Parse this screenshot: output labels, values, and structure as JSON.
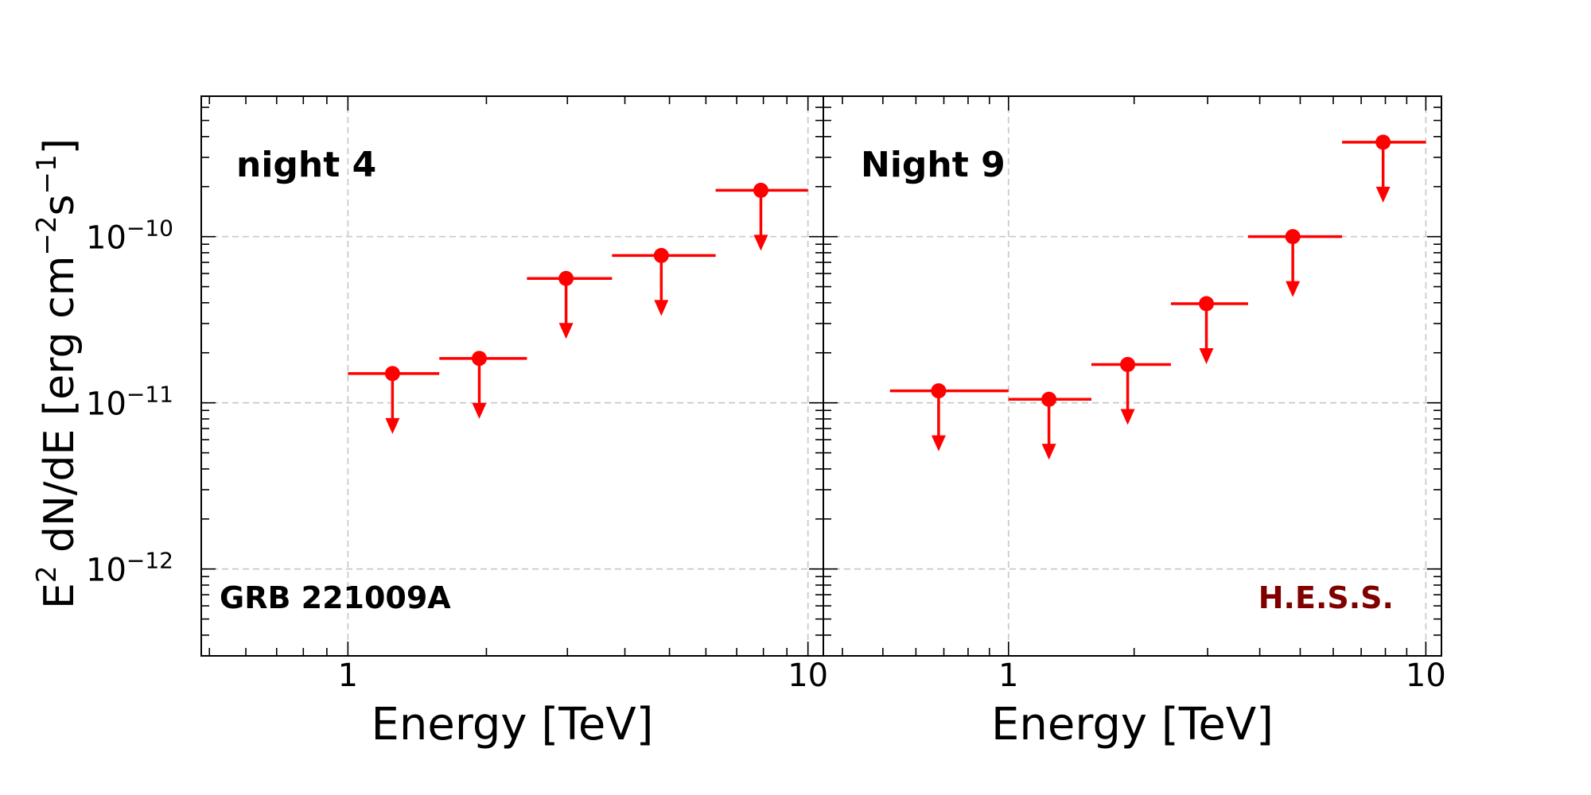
{
  "figure": {
    "ylabel": "E$^2$ dN/dE [erg cm$^{-2}$s$^{-1}$]",
    "ylabel_parts": {
      "pre": "E",
      "exp1": "2",
      "mid": " dN/dE [erg cm",
      "exp2": "−2",
      "s": "s",
      "exp3": "−1",
      "post": "]"
    },
    "ytick_labels": [
      {
        "base": "10",
        "exp": "−10",
        "value": 1e-10
      },
      {
        "base": "10",
        "exp": "−11",
        "value": 1e-11
      },
      {
        "base": "10",
        "exp": "−12",
        "value": 1e-12
      }
    ],
    "marker_color": "#ff0000",
    "hess_color": "#800000",
    "grid_color": "#cccccc"
  },
  "chart_data": [
    {
      "type": "scatter",
      "subtype": "upper-limits",
      "panel_label": "night 4",
      "corner_label": "GRB 221009A",
      "xlabel": "Energy [TeV]",
      "xscale": "log",
      "yscale": "log",
      "xlim": [
        0.48,
        10.8
      ],
      "ylim": [
        3e-13,
        7e-10
      ],
      "xtick_labels": [
        "1",
        "10"
      ],
      "xtick_values": [
        1,
        10
      ],
      "grid": true,
      "series": [
        {
          "upper_limits": true,
          "points": [
            {
              "x": 1.25,
              "x_lo": 1.0,
              "x_hi": 1.58,
              "y": 1.5e-11
            },
            {
              "x": 1.93,
              "x_lo": 1.58,
              "x_hi": 2.45,
              "y": 1.85e-11
            },
            {
              "x": 2.98,
              "x_lo": 2.45,
              "x_hi": 3.75,
              "y": 5.6e-11
            },
            {
              "x": 4.8,
              "x_lo": 3.75,
              "x_hi": 6.3,
              "y": 7.7e-11
            },
            {
              "x": 7.9,
              "x_lo": 6.3,
              "x_hi": 10.0,
              "y": 1.9e-10
            }
          ]
        }
      ]
    },
    {
      "type": "scatter",
      "subtype": "upper-limits",
      "panel_label": "Night 9",
      "corner_label": "H.E.S.S.",
      "xlabel": "Energy [TeV]",
      "xscale": "log",
      "yscale": "log",
      "xlim": [
        0.36,
        10.9
      ],
      "ylim": [
        3e-13,
        7e-10
      ],
      "xtick_labels": [
        "1",
        "10"
      ],
      "xtick_values": [
        1,
        10
      ],
      "grid": true,
      "series": [
        {
          "upper_limits": true,
          "points": [
            {
              "x": 0.68,
              "x_lo": 0.52,
              "x_hi": 1.0,
              "y": 1.18e-11
            },
            {
              "x": 1.25,
              "x_lo": 1.0,
              "x_hi": 1.58,
              "y": 1.05e-11
            },
            {
              "x": 1.93,
              "x_lo": 1.58,
              "x_hi": 2.45,
              "y": 1.7e-11
            },
            {
              "x": 2.98,
              "x_lo": 2.45,
              "x_hi": 3.75,
              "y": 3.95e-11
            },
            {
              "x": 4.8,
              "x_lo": 3.75,
              "x_hi": 6.3,
              "y": 1e-10
            },
            {
              "x": 7.9,
              "x_lo": 6.3,
              "x_hi": 10.0,
              "y": 3.7e-10
            }
          ]
        }
      ]
    }
  ]
}
